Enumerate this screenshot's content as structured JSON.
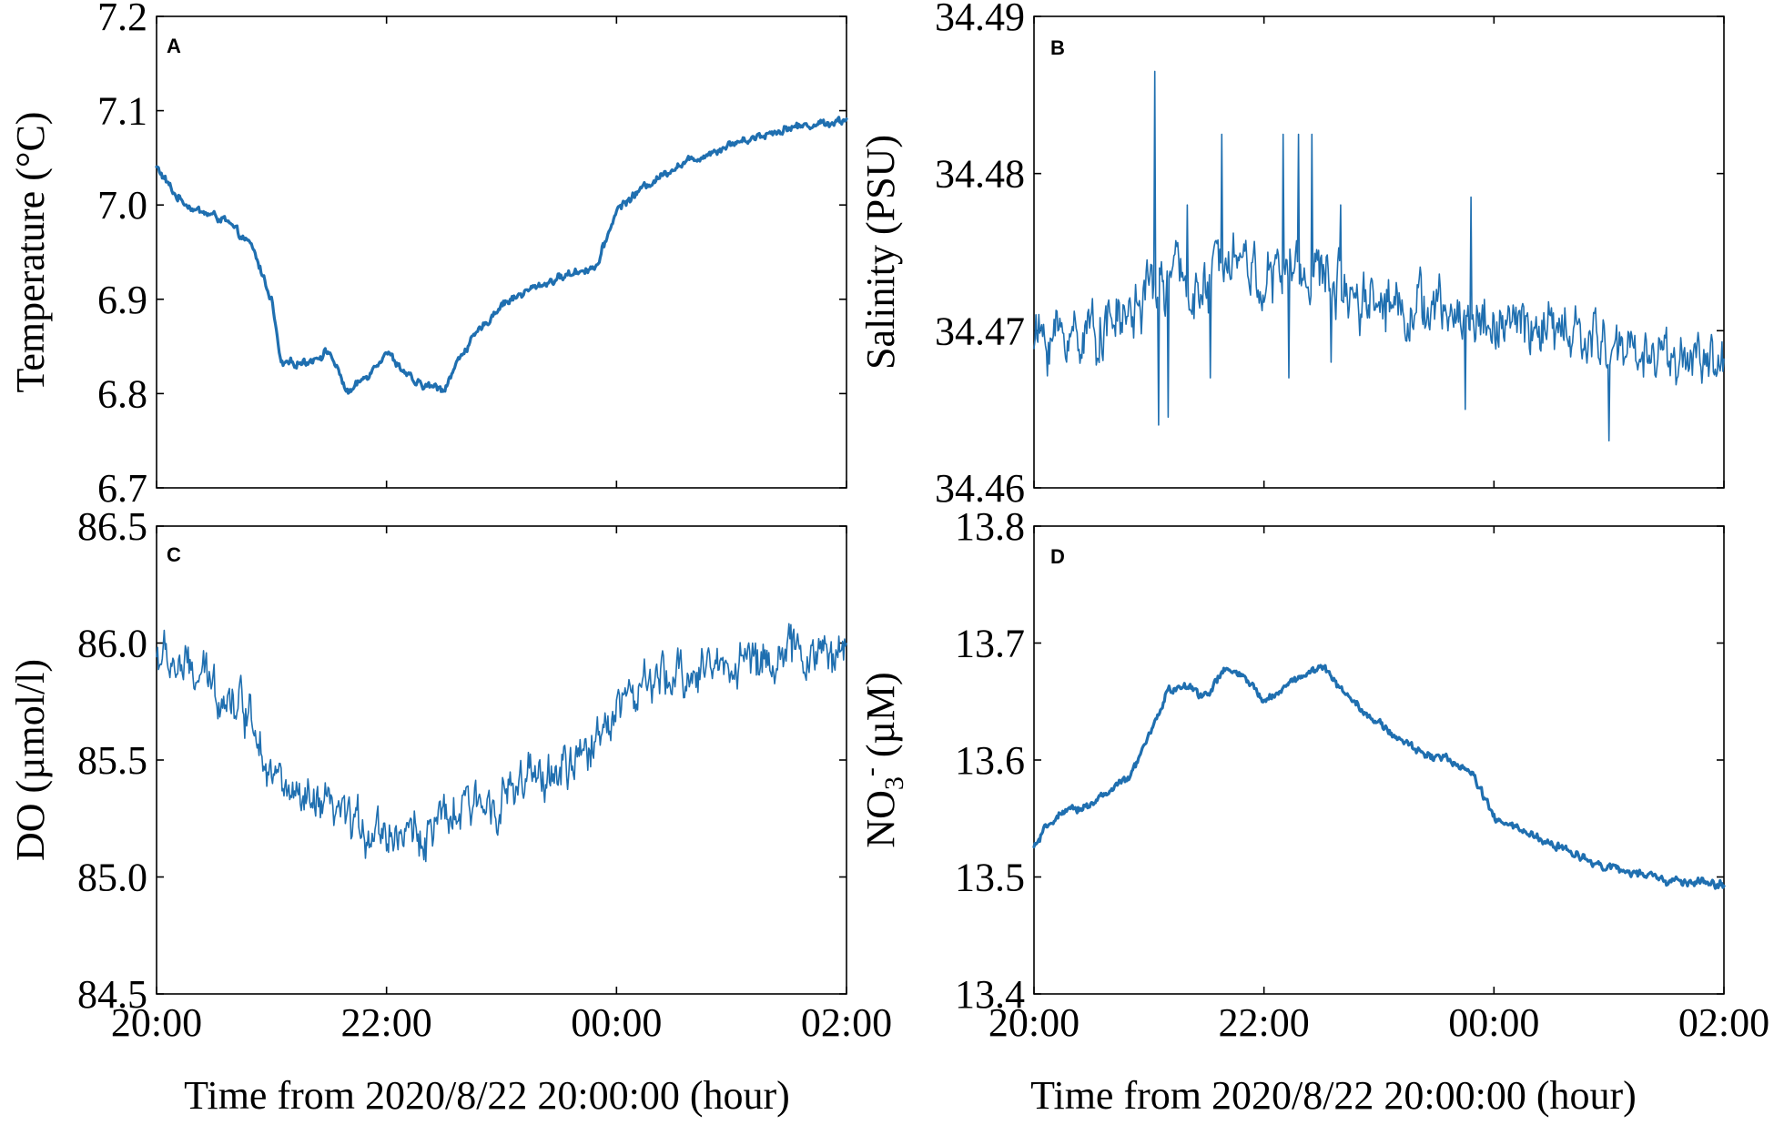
{
  "figure": {
    "colors": {
      "series": "#1f6fb0",
      "axis": "#000000"
    },
    "x_title": "Time from 2020/8/22 20:00:00 (hour)"
  },
  "chart_data": [
    {
      "panel": "A",
      "type": "line",
      "ylabel": "Temperature (°C)",
      "xlabel": "",
      "xlim": [
        "20:00",
        "02:00"
      ],
      "x_ticks": [
        "20:00",
        "22:00",
        "00:00",
        "02:00"
      ],
      "x_tick_labels_visible": false,
      "ylim": [
        6.7,
        7.2
      ],
      "y_ticks": [
        6.7,
        6.8,
        6.9,
        7.0,
        7.1,
        7.2
      ],
      "y_tick_labels": [
        "6.7",
        "6.8",
        "6.9",
        "7.0",
        "7.1",
        "7.2"
      ],
      "noise": 0.003,
      "stroke_width": 3.2,
      "series": [
        {
          "x": [
            "20:00",
            "20:10",
            "20:20",
            "20:35",
            "20:50",
            "21:00",
            "21:05",
            "21:20",
            "21:30",
            "21:40",
            "21:50",
            "22:00",
            "22:15",
            "22:30",
            "22:40",
            "22:50",
            "23:00",
            "23:20",
            "23:40",
            "23:50",
            "00:00",
            "00:15",
            "00:30",
            "01:00",
            "01:30",
            "02:00"
          ],
          "values": [
            7.04,
            7.01,
            6.995,
            6.985,
            6.955,
            6.9,
            6.83,
            6.835,
            6.845,
            6.8,
            6.82,
            6.845,
            6.81,
            6.805,
            6.845,
            6.87,
            6.895,
            6.915,
            6.93,
            6.935,
            6.995,
            7.02,
            7.04,
            7.065,
            7.082,
            7.09
          ]
        }
      ]
    },
    {
      "panel": "B",
      "type": "line",
      "ylabel": "Salinity (PSU)",
      "xlabel": "",
      "xlim": [
        "20:00",
        "02:00"
      ],
      "x_ticks": [
        "20:00",
        "22:00",
        "00:00",
        "02:00"
      ],
      "x_tick_labels_visible": false,
      "ylim": [
        34.46,
        34.49
      ],
      "y_ticks": [
        34.46,
        34.47,
        34.48,
        34.49
      ],
      "y_tick_labels": [
        "34.46",
        "34.47",
        "34.48",
        "34.49"
      ],
      "noise": 0.0013,
      "stroke_width": 1.6,
      "spikes": [
        {
          "x": "21:03",
          "value": 34.4865
        },
        {
          "x": "21:05",
          "value": 34.464
        },
        {
          "x": "21:10",
          "value": 34.4645
        },
        {
          "x": "21:20",
          "value": 34.478
        },
        {
          "x": "21:32",
          "value": 34.467
        },
        {
          "x": "21:38",
          "value": 34.4825
        },
        {
          "x": "22:10",
          "value": 34.4825
        },
        {
          "x": "22:13",
          "value": 34.467
        },
        {
          "x": "22:18",
          "value": 34.4825
        },
        {
          "x": "22:25",
          "value": 34.4825
        },
        {
          "x": "22:35",
          "value": 34.468
        },
        {
          "x": "22:40",
          "value": 34.478
        },
        {
          "x": "23:45",
          "value": 34.465
        },
        {
          "x": "23:48",
          "value": 34.4785
        },
        {
          "x": "01:00",
          "value": 34.463
        }
      ],
      "series": [
        {
          "x": [
            "20:00",
            "20:30",
            "20:50",
            "21:00",
            "21:15",
            "21:30",
            "21:40",
            "21:50",
            "22:00",
            "22:15",
            "22:30",
            "23:00",
            "23:30",
            "00:00",
            "00:30",
            "01:00",
            "01:30",
            "02:00"
          ],
          "values": [
            34.4695,
            34.47,
            34.471,
            34.4725,
            34.4735,
            34.472,
            34.476,
            34.4745,
            34.473,
            34.474,
            34.4735,
            34.472,
            34.4712,
            34.4705,
            34.47,
            34.469,
            34.4685,
            34.468
          ]
        }
      ]
    },
    {
      "panel": "C",
      "type": "line",
      "ylabel": "DO (µmol/l)",
      "xlabel": "Time from 2020/8/22 20:00:00 (hour)",
      "xlim": [
        "20:00",
        "02:00"
      ],
      "x_ticks": [
        "20:00",
        "22:00",
        "00:00",
        "02:00"
      ],
      "x_tick_labels": [
        "20:00",
        "22:00",
        "00:00",
        "02:00"
      ],
      "x_tick_labels_visible": true,
      "ylim": [
        84.5,
        86.5
      ],
      "y_ticks": [
        84.5,
        85.0,
        85.5,
        86.0,
        86.5
      ],
      "y_tick_labels": [
        "84.5",
        "85.0",
        "85.5",
        "86.0",
        "86.5"
      ],
      "noise": 0.07,
      "stroke_width": 1.6,
      "series": [
        {
          "x": [
            "20:00",
            "20:15",
            "20:30",
            "20:50",
            "21:00",
            "21:15",
            "21:30",
            "21:45",
            "22:00",
            "22:20",
            "22:40",
            "23:00",
            "23:20",
            "23:40",
            "23:50",
            "00:00",
            "00:20",
            "00:40",
            "01:00",
            "01:30",
            "02:00"
          ],
          "values": [
            85.95,
            85.88,
            85.82,
            85.7,
            85.45,
            85.3,
            85.28,
            85.22,
            85.2,
            85.18,
            85.28,
            85.35,
            85.42,
            85.48,
            85.6,
            85.75,
            85.82,
            85.88,
            85.92,
            85.95,
            85.96
          ]
        }
      ]
    },
    {
      "panel": "D",
      "type": "line",
      "ylabel": "NO3- (µM)",
      "xlabel": "Time from 2020/8/22 20:00:00 (hour)",
      "xlim": [
        "20:00",
        "02:00"
      ],
      "x_ticks": [
        "20:00",
        "22:00",
        "00:00",
        "02:00"
      ],
      "x_tick_labels": [
        "20:00",
        "22:00",
        "00:00",
        "02:00"
      ],
      "x_tick_labels_visible": true,
      "ylim": [
        13.4,
        13.8
      ],
      "y_ticks": [
        13.4,
        13.5,
        13.6,
        13.7,
        13.8
      ],
      "y_tick_labels": [
        "13.4",
        "13.5",
        "13.6",
        "13.7",
        "13.8"
      ],
      "noise": 0.0025,
      "stroke_width": 3.2,
      "series": [
        {
          "x": [
            "20:00",
            "20:10",
            "20:30",
            "20:50",
            "21:00",
            "21:10",
            "21:20",
            "21:30",
            "21:40",
            "21:50",
            "22:00",
            "22:15",
            "22:30",
            "22:40",
            "23:00",
            "23:20",
            "23:40",
            "23:50",
            "00:00",
            "00:30",
            "01:00",
            "01:30",
            "02:00"
          ],
          "values": [
            13.525,
            13.55,
            13.563,
            13.585,
            13.62,
            13.66,
            13.662,
            13.655,
            13.678,
            13.67,
            13.65,
            13.668,
            13.68,
            13.662,
            13.63,
            13.608,
            13.598,
            13.585,
            13.55,
            13.528,
            13.508,
            13.497,
            13.493
          ]
        }
      ]
    }
  ],
  "ylabel_c": "DO (µmol/l)",
  "ylabel_d": {
    "base": "NO",
    "sub": "3",
    "sup": "-",
    "unit": " (µM)"
  }
}
